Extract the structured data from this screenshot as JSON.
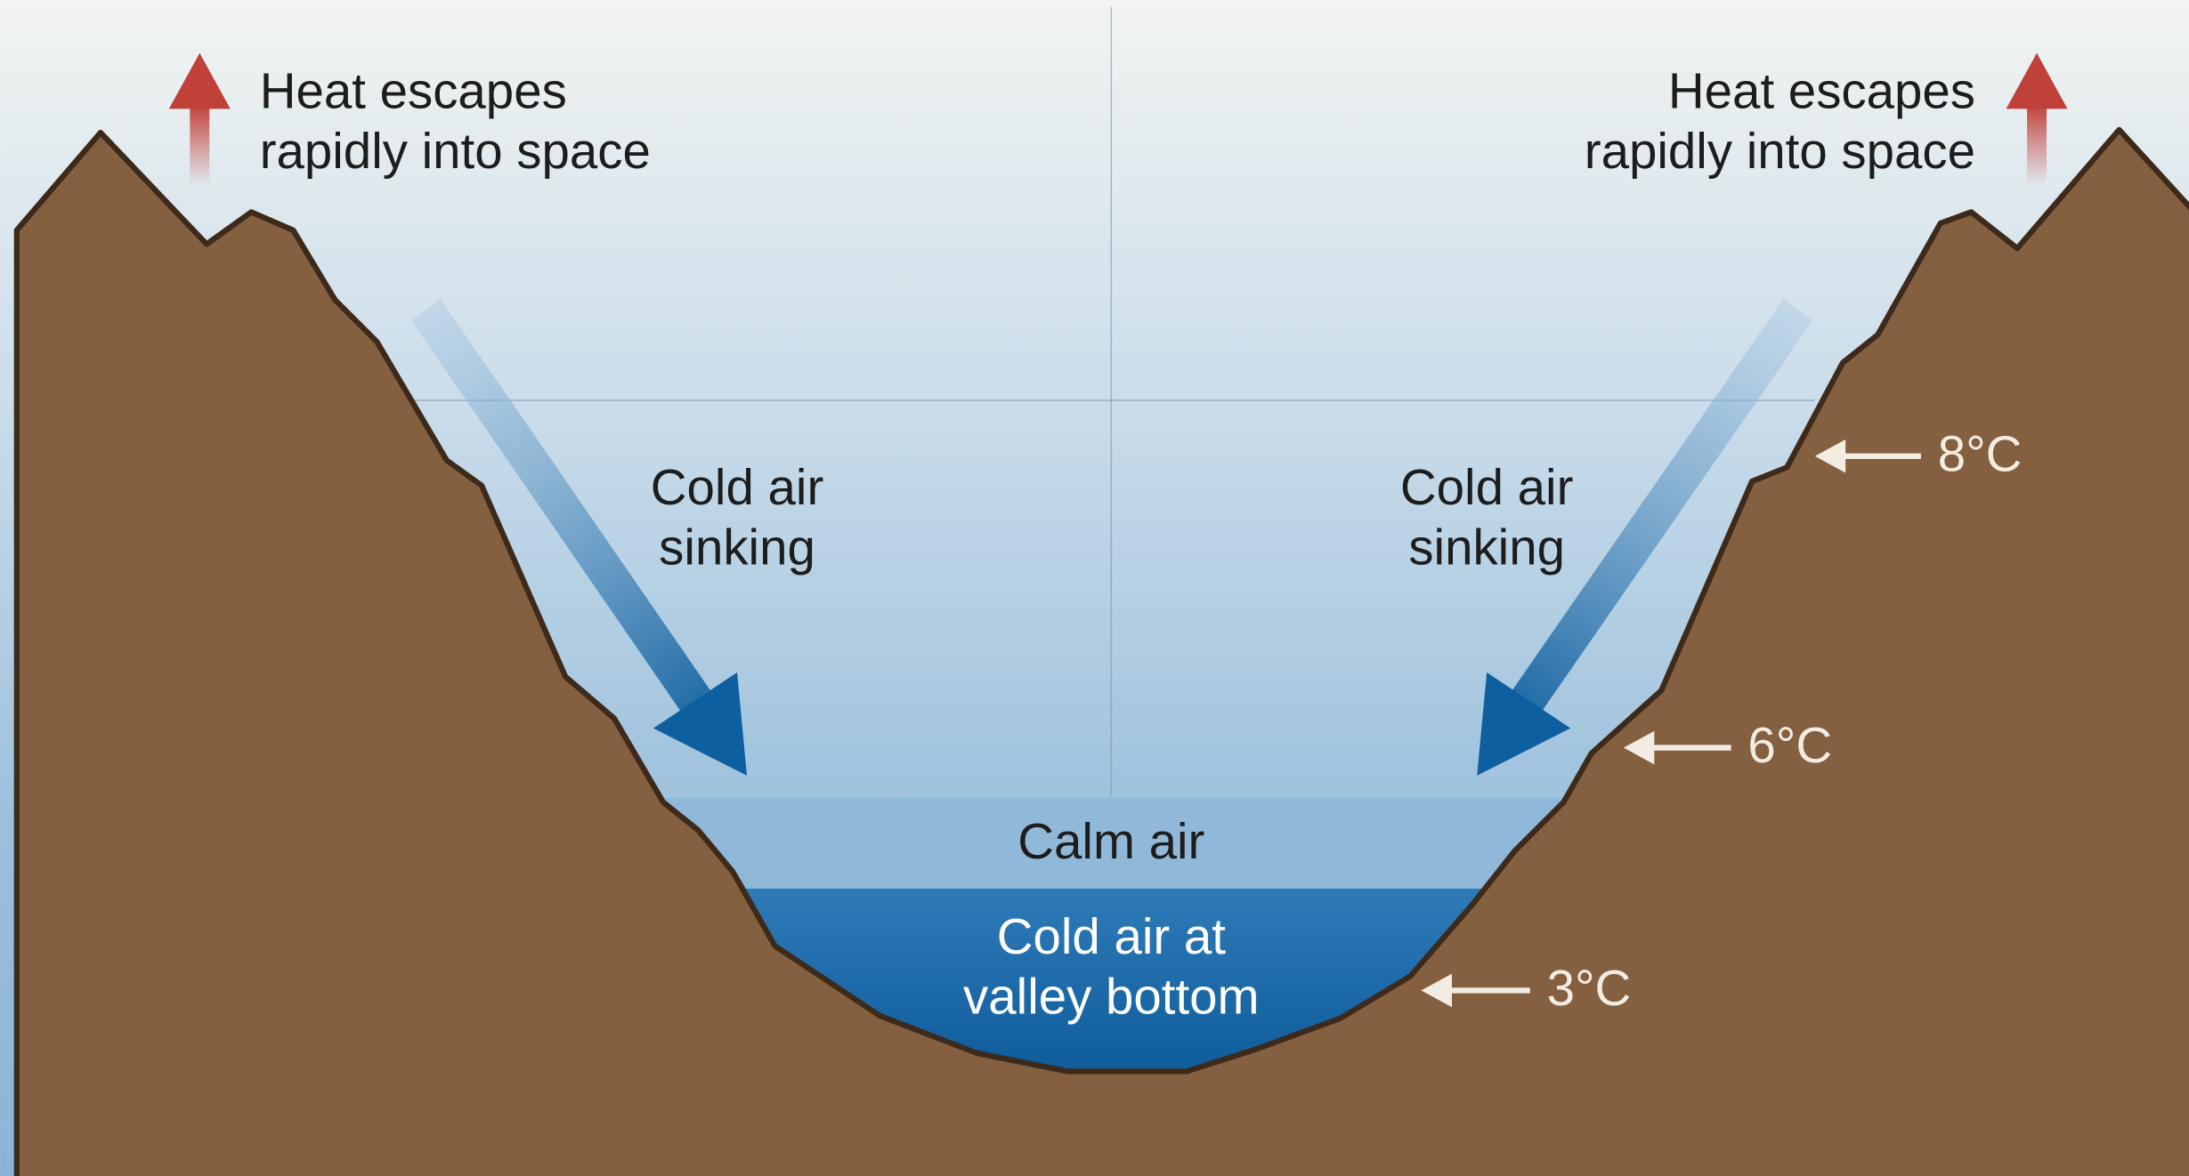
{
  "labels": {
    "heat_left": [
      "Heat escapes",
      "rapidly into space"
    ],
    "heat_right": [
      "Heat escapes",
      "rapidly into space"
    ],
    "sinking_left": [
      "Cold air",
      "sinking"
    ],
    "sinking_right": [
      "Cold air",
      "sinking"
    ],
    "calm_air": "Calm air",
    "cold_bottom": [
      "Cold air at",
      "valley bottom"
    ],
    "temperatures": [
      "8°C",
      "6°C",
      "3°C"
    ]
  }
}
